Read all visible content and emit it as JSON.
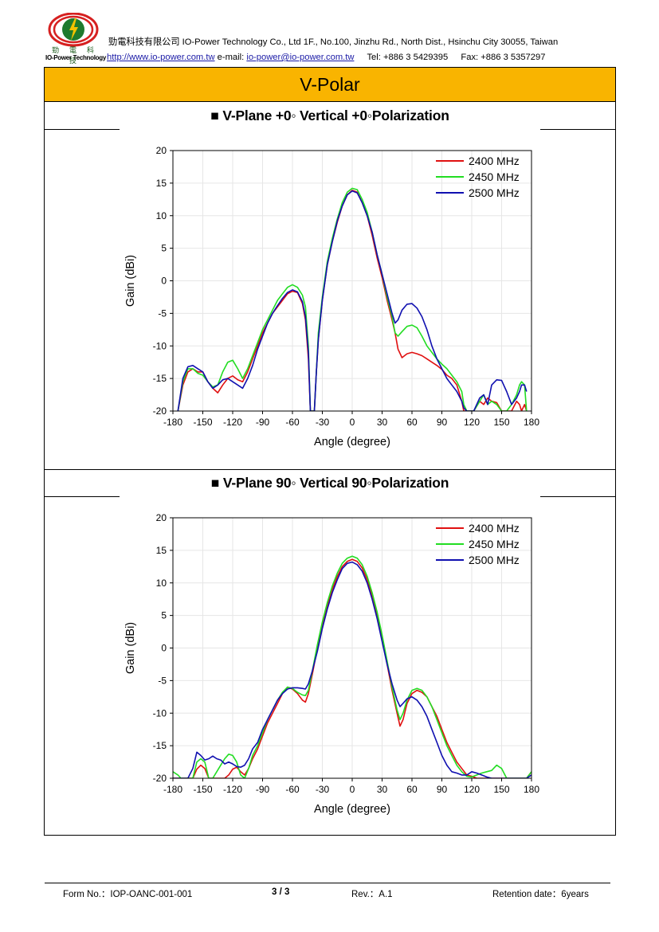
{
  "header": {
    "logo_cn": "勁 電 科 技",
    "logo_en": "IO-Power Technology",
    "company_line": "勁電科技有限公司 IO-Power Technology Co., Ltd 1F., No.100, Jinzhu Rd., North Dist., Hsinchu City 30055, Taiwan",
    "website": "http://www.io-power.com.tw",
    "email_label": "e-mail:",
    "email": "io-power@io-power.com.tw",
    "tel": "Tel: +886 3 5429395",
    "fax": "Fax: +886 3 5357297",
    "logo_colors": {
      "ring": "#d62020",
      "globe": "#1e7a2e",
      "bolt": "#f2c200"
    }
  },
  "page_title": "V-Polar",
  "sections": [
    {
      "title": "■ V-Plane    +0◦       Vertical    +0◦Polarization"
    },
    {
      "title": "■ V-Plane    90◦      Vertical    90◦Polarization"
    }
  ],
  "colors": {
    "title_bar": "#f9b400",
    "s2400": "#e01010",
    "s2450": "#22dd22",
    "s2500": "#1010b0"
  },
  "chart_data": [
    {
      "type": "line",
      "xlabel": "Angle (degree)",
      "ylabel": "Gain (dBi)",
      "xlim": [
        -180,
        180
      ],
      "ylim": [
        -20,
        20
      ],
      "xticks": [
        -180,
        -150,
        -120,
        -90,
        -60,
        -30,
        0,
        30,
        60,
        90,
        120,
        150,
        180
      ],
      "xtick_labels": [
        "-180",
        "-150",
        "-120",
        "-90",
        "-60",
        "-30",
        "0",
        "30",
        "60",
        "90",
        "120",
        "150",
        "180"
      ],
      "yticks": [
        20,
        15,
        10,
        5,
        0,
        -5,
        -10,
        -15,
        -20
      ],
      "grid": true,
      "legend": "top-right",
      "series": [
        {
          "name": "2400 MHz",
          "color": "#e01010",
          "x": [
            -175,
            -170,
            -165,
            -160,
            -155,
            -150,
            -145,
            -140,
            -135,
            -130,
            -125,
            -120,
            -115,
            -110,
            -105,
            -100,
            -95,
            -90,
            -85,
            -80,
            -75,
            -70,
            -65,
            -60,
            -55,
            -50,
            -47,
            -44,
            -42,
            -40,
            -38,
            -36,
            -34,
            -30,
            -25,
            -20,
            -15,
            -10,
            -5,
            0,
            5,
            10,
            15,
            20,
            25,
            30,
            35,
            40,
            43,
            46,
            50,
            55,
            60,
            65,
            70,
            75,
            80,
            85,
            90,
            95,
            100,
            105,
            110,
            112,
            115,
            118,
            122,
            128,
            132,
            136,
            140,
            145,
            150,
            155,
            160,
            165,
            168,
            170,
            173,
            175
          ],
          "y": [
            -20,
            -16,
            -14,
            -13.5,
            -14,
            -14,
            -15.5,
            -16.5,
            -17.2,
            -16,
            -15,
            -14.6,
            -15.2,
            -15.5,
            -14,
            -12,
            -10,
            -8,
            -6.5,
            -5,
            -4,
            -3,
            -2,
            -1.6,
            -1.8,
            -3.5,
            -6,
            -12,
            -20,
            -20,
            -20,
            -14,
            -9,
            -3,
            2.5,
            6,
            9,
            11.5,
            13.2,
            13.9,
            13.6,
            12,
            10,
            7,
            3.5,
            0.5,
            -3,
            -6,
            -8,
            -10.5,
            -11.8,
            -11.2,
            -11,
            -11.2,
            -11.5,
            -12,
            -12.5,
            -13,
            -13.6,
            -14.5,
            -15,
            -16,
            -18.5,
            -20,
            -20,
            -20,
            -20,
            -18.5,
            -19,
            -18,
            -18.5,
            -18.7,
            -20,
            -20,
            -20,
            -18.5,
            -19,
            -20,
            -19,
            -20
          ]
        },
        {
          "name": "2450 MHz",
          "color": "#22dd22",
          "x": [
            -175,
            -170,
            -165,
            -160,
            -155,
            -150,
            -145,
            -140,
            -135,
            -130,
            -125,
            -120,
            -115,
            -110,
            -105,
            -100,
            -95,
            -90,
            -85,
            -80,
            -75,
            -70,
            -65,
            -60,
            -55,
            -50,
            -47,
            -44,
            -42,
            -40,
            -38,
            -36,
            -34,
            -30,
            -25,
            -20,
            -15,
            -10,
            -5,
            0,
            5,
            10,
            15,
            20,
            25,
            30,
            35,
            40,
            43,
            46,
            50,
            55,
            60,
            65,
            70,
            75,
            80,
            85,
            90,
            95,
            100,
            105,
            110,
            112,
            115,
            118,
            122,
            128,
            132,
            136,
            140,
            145,
            150,
            155,
            160,
            165,
            168,
            170,
            173,
            175
          ],
          "y": [
            -20,
            -15.5,
            -13.5,
            -13.5,
            -14.2,
            -14.5,
            -15.5,
            -16.3,
            -16,
            -14,
            -12.5,
            -12.2,
            -13.5,
            -15,
            -13.5,
            -11.5,
            -9.5,
            -7.5,
            -6,
            -4.5,
            -3,
            -2,
            -1,
            -0.6,
            -1,
            -2.2,
            -4,
            -10,
            -20,
            -20,
            -20,
            -14,
            -8,
            -2.5,
            3,
            6.5,
            9.5,
            12,
            13.6,
            14.2,
            14,
            12.5,
            10.5,
            7.5,
            4,
            1,
            -2.5,
            -5.5,
            -8,
            -8.5,
            -7.8,
            -7,
            -6.8,
            -7.2,
            -8.5,
            -10,
            -11,
            -12,
            -12.8,
            -13.5,
            -14.5,
            -15.5,
            -17,
            -19,
            -20,
            -20,
            -20,
            -18.5,
            -17.5,
            -19,
            -18.5,
            -19,
            -20,
            -20,
            -19,
            -17.5,
            -16,
            -15.5,
            -16,
            -20
          ]
        },
        {
          "name": "2500 MHz",
          "color": "#1010b0",
          "x": [
            -175,
            -170,
            -165,
            -160,
            -155,
            -150,
            -145,
            -140,
            -135,
            -130,
            -125,
            -120,
            -115,
            -110,
            -105,
            -100,
            -95,
            -90,
            -85,
            -80,
            -75,
            -70,
            -65,
            -60,
            -55,
            -50,
            -47,
            -44,
            -42,
            -40,
            -38,
            -36,
            -34,
            -30,
            -25,
            -20,
            -15,
            -10,
            -5,
            0,
            5,
            10,
            15,
            20,
            25,
            30,
            35,
            40,
            43,
            46,
            50,
            55,
            60,
            65,
            70,
            75,
            80,
            85,
            90,
            95,
            100,
            105,
            110,
            112,
            115,
            118,
            122,
            128,
            132,
            136,
            140,
            145,
            150,
            155,
            160,
            165,
            168,
            170,
            173,
            175
          ],
          "y": [
            -20,
            -15,
            -13.2,
            -13,
            -13.5,
            -14,
            -15.5,
            -16.5,
            -16,
            -15.2,
            -15,
            -15.5,
            -16,
            -16.5,
            -15,
            -13,
            -10.5,
            -8.5,
            -6.5,
            -5,
            -3.8,
            -2.7,
            -1.8,
            -1.4,
            -1.7,
            -3.2,
            -5.5,
            -11,
            -20,
            -20,
            -20,
            -14,
            -9,
            -3,
            2.5,
            6,
            9.2,
            11.5,
            13.2,
            13.8,
            13.5,
            12,
            10,
            7.5,
            4,
            1,
            -2,
            -5,
            -6.5,
            -6,
            -4.5,
            -3.6,
            -3.5,
            -4.2,
            -5.5,
            -7.5,
            -10,
            -12,
            -13.5,
            -15,
            -16,
            -17,
            -18.5,
            -19.5,
            -20,
            -20,
            -20,
            -18,
            -17.5,
            -19,
            -16,
            -15.2,
            -15.3,
            -17,
            -19,
            -18,
            -17,
            -16,
            -16,
            -17
          ]
        }
      ]
    },
    {
      "type": "line",
      "xlabel": "Angle (degree)",
      "ylabel": "Gain (dBi)",
      "xlim": [
        -180,
        180
      ],
      "ylim": [
        -20,
        20
      ],
      "xticks": [
        -180,
        -150,
        -120,
        -90,
        -60,
        -30,
        0,
        30,
        60,
        90,
        120,
        150,
        180
      ],
      "xtick_labels": [
        "-180",
        "-150",
        "-120",
        "-90",
        "-60",
        "-30",
        "0",
        "30",
        "60",
        "90",
        "120",
        "150",
        "180"
      ],
      "yticks": [
        20,
        15,
        10,
        5,
        0,
        -5,
        -10,
        -15,
        -20
      ],
      "grid": true,
      "legend": "top-right",
      "series": [
        {
          "name": "2400 MHz",
          "color": "#e01010",
          "x": [
            -180,
            -175,
            -172,
            -168,
            -165,
            -160,
            -156,
            -152,
            -148,
            -144,
            -140,
            -136,
            -132,
            -128,
            -124,
            -120,
            -116,
            -112,
            -108,
            -104,
            -100,
            -95,
            -90,
            -85,
            -80,
            -75,
            -70,
            -65,
            -60,
            -55,
            -50,
            -47,
            -44,
            -40,
            -35,
            -30,
            -25,
            -20,
            -15,
            -10,
            -5,
            0,
            5,
            10,
            15,
            20,
            25,
            30,
            35,
            40,
            45,
            48,
            51,
            55,
            60,
            65,
            70,
            75,
            80,
            85,
            90,
            95,
            100,
            105,
            110,
            115,
            120,
            125,
            130,
            135,
            140,
            145,
            150,
            155,
            160,
            165,
            170,
            175,
            180
          ],
          "y": [
            -20,
            -20,
            -20,
            -20,
            -20,
            -20,
            -18.6,
            -18,
            -18.5,
            -20,
            -20,
            -20,
            -20,
            -20,
            -19.5,
            -18.6,
            -18.3,
            -19,
            -19.5,
            -18.5,
            -17,
            -15.5,
            -13.5,
            -11.5,
            -10,
            -8.5,
            -7,
            -6,
            -6.3,
            -7,
            -8,
            -8.3,
            -7,
            -4,
            0,
            3.5,
            6.5,
            9,
            11,
            12.5,
            13.3,
            13.6,
            13.3,
            12.3,
            10.5,
            8,
            5,
            1.5,
            -2.5,
            -6.5,
            -10,
            -12,
            -11,
            -8.5,
            -7,
            -6.5,
            -6.8,
            -7.5,
            -9,
            -10.5,
            -12.5,
            -14.5,
            -16,
            -17.5,
            -18.5,
            -19.5,
            -19.7,
            -20,
            -20,
            -20,
            -20,
            -20,
            -20,
            -20,
            -20,
            -20,
            -20,
            -20,
            -19
          ]
        },
        {
          "name": "2450 MHz",
          "color": "#22dd22",
          "x": [
            -180,
            -175,
            -172,
            -168,
            -165,
            -160,
            -156,
            -152,
            -148,
            -144,
            -140,
            -136,
            -132,
            -128,
            -124,
            -120,
            -116,
            -112,
            -108,
            -104,
            -100,
            -95,
            -90,
            -85,
            -80,
            -75,
            -70,
            -65,
            -60,
            -55,
            -50,
            -47,
            -44,
            -40,
            -35,
            -30,
            -25,
            -20,
            -15,
            -10,
            -5,
            0,
            5,
            10,
            15,
            20,
            25,
            30,
            35,
            40,
            45,
            48,
            51,
            55,
            60,
            65,
            70,
            75,
            80,
            85,
            90,
            95,
            100,
            105,
            110,
            115,
            120,
            125,
            130,
            135,
            140,
            145,
            150,
            155,
            160,
            165,
            170,
            175,
            180
          ],
          "y": [
            -19,
            -19.5,
            -20,
            -20,
            -20,
            -20,
            -17.5,
            -17,
            -17.5,
            -20,
            -20,
            -19,
            -18,
            -17,
            -16.3,
            -16.5,
            -17.5,
            -19.5,
            -20,
            -18.5,
            -16.5,
            -15,
            -13,
            -11,
            -9.5,
            -8,
            -6.8,
            -6,
            -6.2,
            -6.8,
            -7.2,
            -7.3,
            -6.5,
            -3.5,
            0.5,
            4,
            7,
            9.5,
            11.5,
            13,
            13.8,
            14.1,
            13.8,
            12.8,
            11,
            8.5,
            5.5,
            2,
            -2,
            -6,
            -9.5,
            -11,
            -10,
            -8,
            -6.5,
            -6.2,
            -6.5,
            -7.5,
            -9,
            -11,
            -13,
            -15,
            -16.5,
            -18,
            -19,
            -19.7,
            -19.8,
            -19.5,
            -19.2,
            -19,
            -18.8,
            -18,
            -18.5,
            -20,
            -20,
            -20,
            -20,
            -20,
            -19
          ]
        },
        {
          "name": "2500 MHz",
          "color": "#1010b0",
          "x": [
            -180,
            -175,
            -172,
            -168,
            -165,
            -160,
            -156,
            -152,
            -148,
            -144,
            -140,
            -136,
            -132,
            -128,
            -124,
            -120,
            -116,
            -112,
            -108,
            -104,
            -100,
            -95,
            -90,
            -85,
            -80,
            -75,
            -70,
            -65,
            -60,
            -55,
            -50,
            -47,
            -44,
            -40,
            -35,
            -30,
            -25,
            -20,
            -15,
            -10,
            -5,
            0,
            5,
            10,
            15,
            20,
            25,
            30,
            35,
            40,
            45,
            48,
            51,
            55,
            60,
            65,
            70,
            75,
            80,
            85,
            90,
            95,
            100,
            105,
            110,
            115,
            120,
            125,
            130,
            135,
            140,
            145,
            150,
            155,
            160,
            165,
            170,
            175,
            180
          ],
          "y": [
            -20,
            -20,
            -20,
            -20,
            -20,
            -18.5,
            -16,
            -16.5,
            -17.2,
            -17,
            -16.6,
            -17,
            -17.2,
            -17.8,
            -17.5,
            -17.8,
            -18.2,
            -18.3,
            -18,
            -17,
            -15.5,
            -14.5,
            -12.5,
            -11,
            -9.5,
            -8,
            -7,
            -6.3,
            -6.1,
            -6.1,
            -6.2,
            -6.3,
            -5.5,
            -3.5,
            -0.5,
            3,
            6,
            8.5,
            10.5,
            12.2,
            13,
            13.2,
            12.8,
            11.8,
            10,
            7.5,
            4.5,
            1,
            -2.5,
            -5.5,
            -8,
            -9,
            -8.5,
            -7.8,
            -7.5,
            -8,
            -9,
            -10.5,
            -12.5,
            -14.5,
            -16.5,
            -18,
            -19,
            -19.2,
            -19.5,
            -19.5,
            -19,
            -19.2,
            -19.5,
            -19.8,
            -20,
            -20,
            -20,
            -20,
            -20,
            -20,
            -20,
            -20,
            -19.5
          ]
        }
      ]
    }
  ],
  "footer": {
    "form_no": "Form No.：IOP-OANC-001-001",
    "page": "3 / 3",
    "rev": "Rev.：A.1",
    "retention": "Retention date：6years"
  }
}
